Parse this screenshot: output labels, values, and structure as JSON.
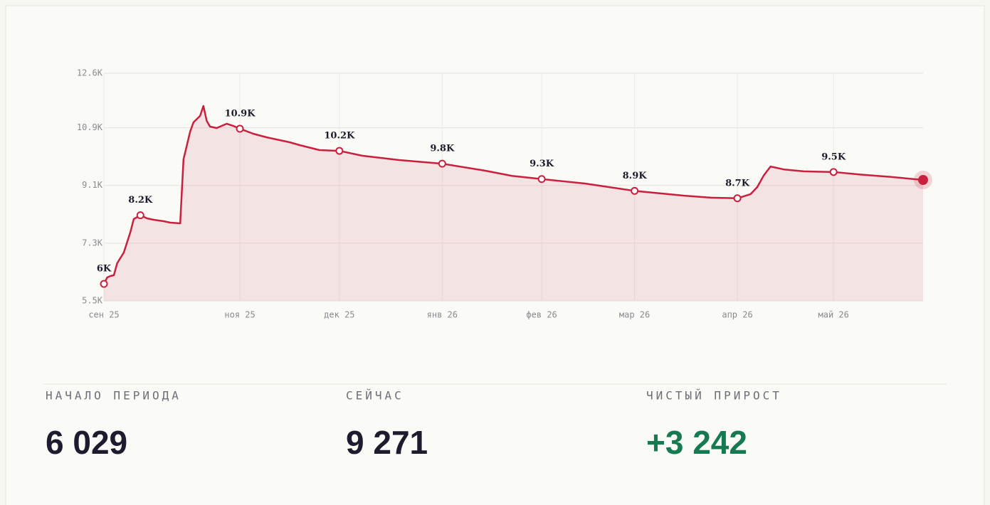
{
  "chart_data": {
    "type": "line",
    "x": [
      0,
      1,
      2,
      3,
      4,
      6,
      8,
      9,
      11,
      13,
      15,
      18,
      20,
      23,
      24,
      26,
      27,
      29,
      30,
      31,
      32,
      34,
      36,
      37,
      39,
      41,
      45,
      49,
      56,
      59,
      65,
      71,
      78,
      89,
      102,
      115,
      123,
      132,
      145,
      160,
      175,
      183,
      191,
      195,
      197,
      199,
      201,
      205,
      211,
      220,
      228,
      237,
      247
    ],
    "series": [
      {
        "color": "#c8203e",
        "values": [
          6029,
          6232,
          6277,
          6299,
          6676,
          7009,
          7652,
          8052,
          8170,
          8074,
          8029,
          7985,
          7941,
          7918,
          9915,
          10780,
          11069,
          11269,
          11580,
          11113,
          10936,
          10892,
          10980,
          11025,
          10958,
          10870,
          10714,
          10603,
          10448,
          10359,
          10204,
          10180,
          10026,
          9893,
          9780,
          9560,
          9400,
          9300,
          9160,
          8930,
          8780,
          8720,
          8700,
          8830,
          9050,
          9420,
          9690,
          9600,
          9540,
          9520,
          9440,
          9370,
          9271
        ],
        "value_labels": [
          "6K",
          null,
          null,
          null,
          null,
          null,
          null,
          null,
          "8.2K",
          null,
          null,
          null,
          null,
          null,
          null,
          null,
          null,
          null,
          null,
          null,
          null,
          null,
          null,
          null,
          null,
          "10.9K",
          null,
          null,
          null,
          null,
          null,
          "10.2K",
          null,
          null,
          "9.8K",
          null,
          null,
          "9.3K",
          null,
          "8.9K",
          null,
          null,
          "8.7K",
          null,
          null,
          null,
          null,
          null,
          null,
          "9.5K",
          null,
          null,
          null
        ]
      }
    ],
    "xlim": [
      0,
      247
    ],
    "xticks": [
      {
        "value": 0,
        "label": "сен 25"
      },
      {
        "value": 41,
        "label": "ноя 25"
      },
      {
        "value": 71,
        "label": "дек 25"
      },
      {
        "value": 102,
        "label": "янв 26"
      },
      {
        "value": 132,
        "label": "фев 26"
      },
      {
        "value": 160,
        "label": "мар 26"
      },
      {
        "value": 191,
        "label": "апр 26"
      },
      {
        "value": 220,
        "label": "май 26"
      }
    ],
    "ylim": [
      5500,
      12600
    ],
    "yticks": [
      {
        "value": 5500,
        "label": "5.5K"
      },
      {
        "value": 7300,
        "label": "7.3K"
      },
      {
        "value": 9100,
        "label": "9.1K"
      },
      {
        "value": 10900,
        "label": "10.9K"
      },
      {
        "value": 12600,
        "label": "12.6K"
      }
    ],
    "grid": true
  },
  "stats": [
    {
      "label": "НАЧАЛО ПЕРИОДА",
      "value": "6 029"
    },
    {
      "label": "СЕЙЧАС",
      "value": "9 271"
    },
    {
      "label": "ЧИСТЫЙ ПРИРОСТ",
      "value": "+3 242"
    }
  ]
}
